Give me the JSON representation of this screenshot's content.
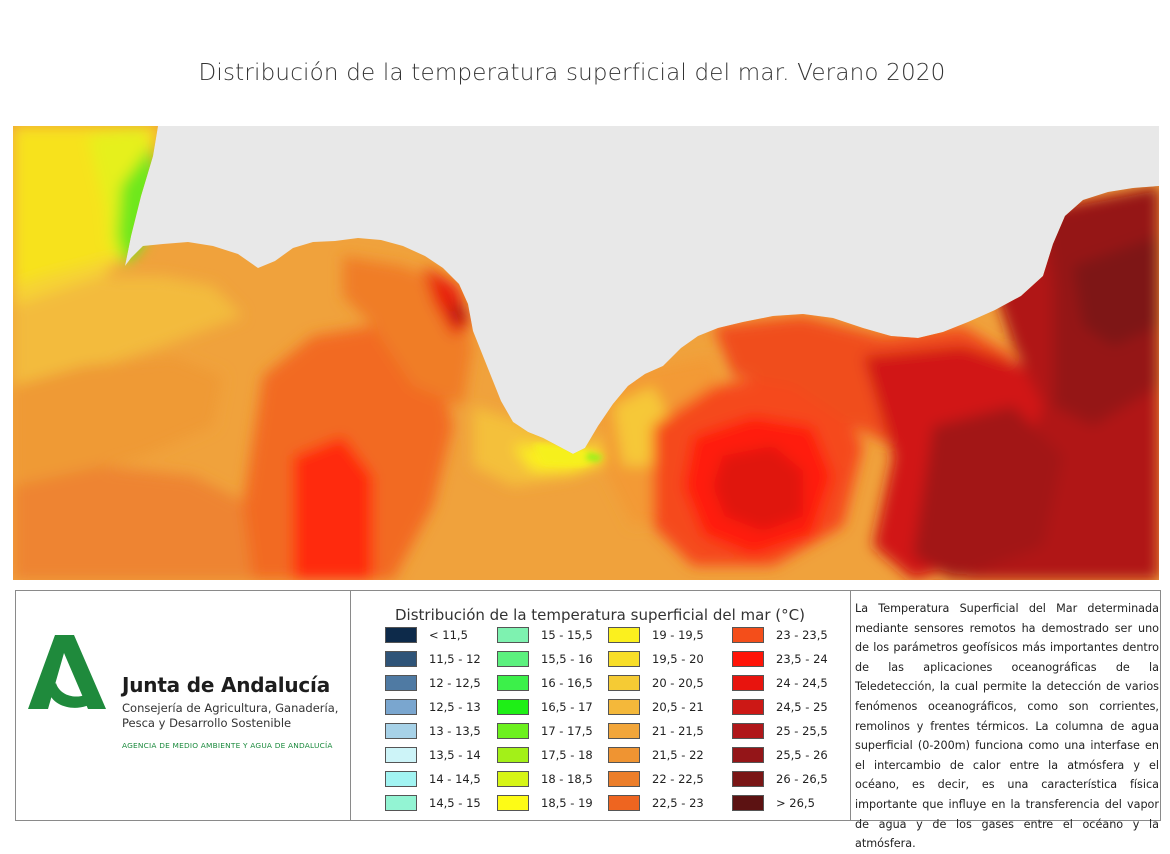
{
  "title": "Distribución de la temperatura superficial del mar. Verano 2020",
  "colors": {
    "land": "#e8e8e8",
    "logo_green": "#1f8a3c"
  },
  "organization": {
    "name": "Junta de Andalucía",
    "department": "Consejería de Agricultura, Ganadería, Pesca y Desarrollo Sostenible",
    "agency": "AGENCIA DE MEDIO AMBIENTE Y AGUA DE ANDALUCÍA"
  },
  "legend": {
    "title": "Distribución de la temperatura superficial del mar (°C)",
    "columns": [
      [
        {
          "label": "< 11,5",
          "color": "#0d2a4a"
        },
        {
          "label": "11,5 - 12",
          "color": "#2f5478"
        },
        {
          "label": "12 - 12,5",
          "color": "#4f7aa3"
        },
        {
          "label": "12,5 - 13",
          "color": "#7aa6cf"
        },
        {
          "label": "13 - 13,5",
          "color": "#a7d2e8"
        },
        {
          "label": "13,5 - 14",
          "color": "#cdf4f8"
        },
        {
          "label": "14 - 14,5",
          "color": "#a2f4f2"
        },
        {
          "label": "14,5 - 15",
          "color": "#93f4d3"
        }
      ],
      [
        {
          "label": "15 - 15,5",
          "color": "#7ef2b0"
        },
        {
          "label": "15,5 - 16",
          "color": "#5cf07e"
        },
        {
          "label": "16 - 16,5",
          "color": "#3cf04a"
        },
        {
          "label": "16,5 - 17",
          "color": "#1eef16"
        },
        {
          "label": "17 - 17,5",
          "color": "#6cf01e"
        },
        {
          "label": "17,5 - 18",
          "color": "#a3f018"
        },
        {
          "label": "18 - 18,5",
          "color": "#d6f516"
        },
        {
          "label": "18,5 - 19",
          "color": "#fdfb16"
        }
      ],
      [
        {
          "label": "19 - 19,5",
          "color": "#fbf01e"
        },
        {
          "label": "19,5 - 20",
          "color": "#f8de28"
        },
        {
          "label": "20 - 20,5",
          "color": "#f5cb34"
        },
        {
          "label": "20,5 - 21",
          "color": "#f4b83a"
        },
        {
          "label": "21 - 21,5",
          "color": "#f2a63a"
        },
        {
          "label": "21,5 - 22",
          "color": "#ef9432"
        },
        {
          "label": "22 - 22,5",
          "color": "#ec7e2a"
        },
        {
          "label": "22,5 - 23",
          "color": "#ee6520"
        }
      ],
      [
        {
          "label": "23 - 23,5",
          "color": "#f44e1a"
        },
        {
          "label": "23,5 - 24",
          "color": "#ff1408"
        },
        {
          "label": "24 - 24,5",
          "color": "#e8140e"
        },
        {
          "label": "24,5 - 25",
          "color": "#cc1815"
        },
        {
          "label": "25 - 25,5",
          "color": "#b0171a"
        },
        {
          "label": "25,5 - 26",
          "color": "#941518"
        },
        {
          "label": "26 - 26,5",
          "color": "#7a1616"
        },
        {
          "label": "> 26,5",
          "color": "#5c1212"
        }
      ]
    ]
  },
  "description": "La Temperatura Superficial del Mar determinada mediante sensores remotos ha demostrado ser uno de los parámetros geofísicos más importantes dentro de las aplicaciones oceanográficas de la Teledetección, la cual permite la detección de varios fenómenos oceanográficos, como son corrientes, remolinos y frentes térmicos. La columna de agua superficial (0-200m) funciona como una interfase en el intercambio de calor entre la atmósfera y el océano, es decir, es una característica física importante que influye en la transferencia del vapor de agua y de los gases entre el océano y la atmósfera."
}
